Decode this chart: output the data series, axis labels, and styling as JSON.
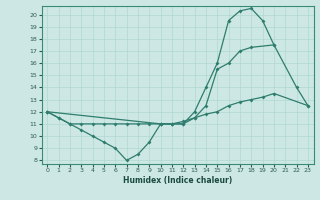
{
  "xlabel": "Humidex (Indice chaleur)",
  "bg_color": "#cde8e4",
  "line_color": "#2e7d6e",
  "grid_color": "#b0d8d0",
  "xmin": 0,
  "xmax": 23,
  "ymin": 8,
  "ymax": 20,
  "yticks": [
    8,
    9,
    10,
    11,
    12,
    13,
    14,
    15,
    16,
    17,
    18,
    19,
    20
  ],
  "xticks": [
    0,
    1,
    2,
    3,
    4,
    5,
    6,
    7,
    8,
    9,
    10,
    11,
    12,
    13,
    14,
    15,
    16,
    17,
    18,
    19,
    20,
    21,
    22,
    23
  ],
  "line1_x": [
    0,
    1,
    2,
    3,
    4,
    5,
    6,
    7,
    8,
    9,
    10,
    11,
    12,
    13,
    14,
    15,
    16,
    17,
    18,
    19,
    20
  ],
  "line1_y": [
    12,
    11.5,
    11,
    10.5,
    10,
    9.5,
    9,
    8,
    8.5,
    9.5,
    11,
    11,
    11,
    12,
    14,
    16,
    19.5,
    20.3,
    20.5,
    19.5,
    17.5
  ],
  "line2_x": [
    0,
    10,
    11,
    12,
    13,
    14,
    15,
    16,
    17,
    18,
    20,
    22,
    23
  ],
  "line2_y": [
    12,
    11,
    11,
    11,
    11.5,
    12.5,
    15.5,
    16,
    17,
    17.3,
    17.5,
    14,
    12.5
  ],
  "line3_x": [
    0,
    1,
    2,
    3,
    4,
    5,
    6,
    7,
    8,
    9,
    10,
    11,
    12,
    13,
    14,
    15,
    16,
    17,
    18,
    19,
    20,
    23
  ],
  "line3_y": [
    12,
    11.5,
    11,
    11,
    11,
    11,
    11,
    11,
    11,
    11,
    11,
    11,
    11.2,
    11.5,
    11.8,
    12,
    12.5,
    12.8,
    13,
    13.2,
    13.5,
    12.5
  ]
}
